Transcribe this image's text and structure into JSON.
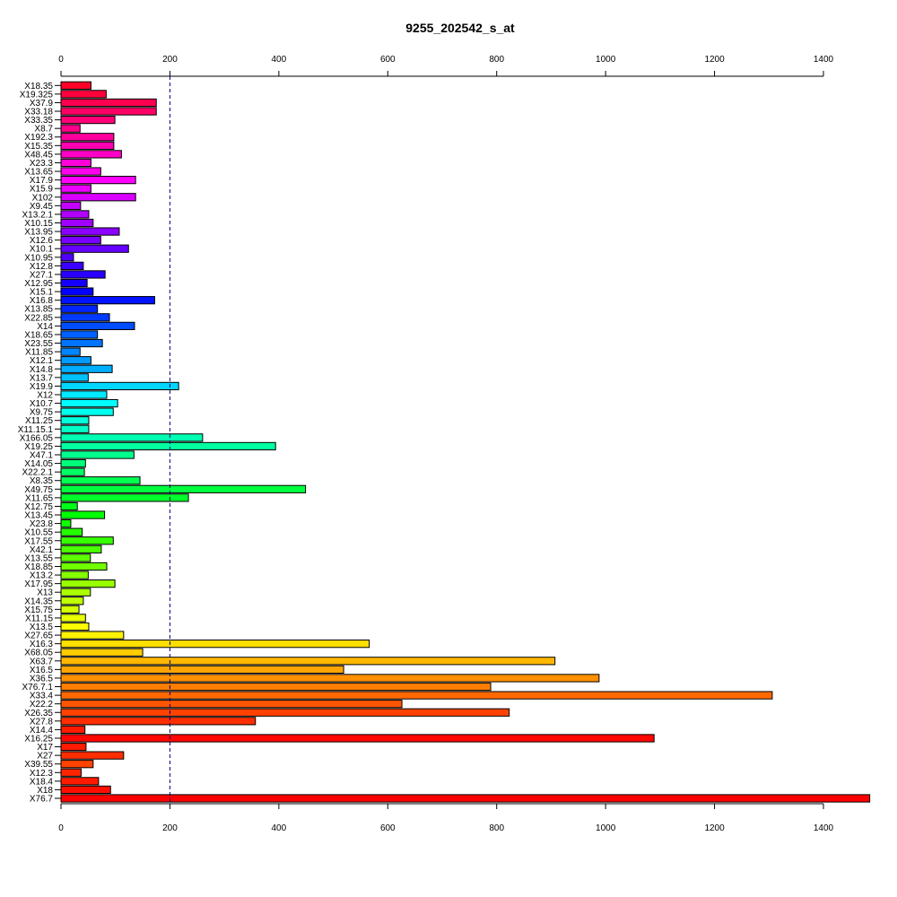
{
  "chart_data": {
    "type": "bar",
    "orientation": "horizontal",
    "title": "9255_202542_s_at",
    "xlabel": "",
    "ylabel": "",
    "xlim": [
      0,
      1400
    ],
    "xticks": [
      0,
      200,
      400,
      600,
      800,
      1000,
      1200,
      1400
    ],
    "reference_line": 200,
    "grid": false,
    "categories": [
      "X18.35",
      "X19.325",
      "X37.9",
      "X33.18",
      "X33.35",
      "X8.7",
      "X192.3",
      "X15.35",
      "X48.45",
      "X23.3",
      "X13.65",
      "X17.9",
      "X15.9",
      "X102",
      "X9.45",
      "X13.2.1",
      "X10.15",
      "X13.95",
      "X12.6",
      "X10.1",
      "X10.95",
      "X12.8",
      "X27.1",
      "X12.95",
      "X15.1",
      "X16.8",
      "X13.85",
      "X22.85",
      "X14",
      "X18.65",
      "X23.55",
      "X11.85",
      "X12.1",
      "X14.8",
      "X13.7",
      "X19.9",
      "X12",
      "X10.7",
      "X9.75",
      "X11.25",
      "X11.15.1",
      "X166.05",
      "X19.25",
      "X47.1",
      "X14.05",
      "X22.2.1",
      "X8.35",
      "X49.75",
      "X11.65",
      "X12.75",
      "X13.45",
      "X23.8",
      "X10.55",
      "X17.55",
      "X42.1",
      "X13.55",
      "X18.85",
      "X13.2",
      "X17.95",
      "X13",
      "X14.35",
      "X15.75",
      "X11.15",
      "X13.5",
      "X27.65",
      "X16.3",
      "X68.05",
      "X63.7",
      "X16.5",
      "X36.5",
      "X76.7.1",
      "X33.4",
      "X22.2",
      "X26.35",
      "X27.8",
      "X14.4",
      "X16.25",
      "X17",
      "X27",
      "X39.55",
      "X12.3",
      "X18.4",
      "X18",
      "X76.7"
    ],
    "values": [
      55,
      83,
      175,
      175,
      99,
      35,
      97,
      97,
      111,
      55,
      73,
      137,
      55,
      137,
      36,
      51,
      59,
      107,
      73,
      124,
      23,
      41,
      81,
      48,
      59,
      172,
      67,
      89,
      135,
      67,
      76,
      35,
      55,
      94,
      50,
      216,
      84,
      104,
      96,
      51,
      51,
      260,
      394,
      134,
      45,
      43,
      145,
      449,
      234,
      30,
      80,
      18,
      39,
      96,
      74,
      54,
      84,
      50,
      99,
      54,
      41,
      33,
      45,
      51,
      115,
      566,
      150,
      907,
      519,
      988,
      789,
      1306,
      626,
      823,
      357,
      44,
      1089,
      46,
      115,
      59,
      37,
      69,
      91,
      1485
    ],
    "colors": [
      "#ff0029",
      "#ff003c",
      "#ff0050",
      "#ff0064",
      "#ff0077",
      "#ff008b",
      "#ff009f",
      "#ff00b2",
      "#ff00c6",
      "#ff00d9",
      "#ff00ed",
      "#ff00ff",
      "#ed00ff",
      "#d900ff",
      "#c600ff",
      "#b200ff",
      "#9f00ff",
      "#8b00ff",
      "#7700ff",
      "#6400ff",
      "#5000ff",
      "#3c00ff",
      "#2900ff",
      "#1500ff",
      "#0200ff",
      "#0012ff",
      "#0025ff",
      "#0039ff",
      "#004cff",
      "#0060ff",
      "#0074ff",
      "#0087ff",
      "#009bff",
      "#00aeff",
      "#00c2ff",
      "#00d6ff",
      "#00e9ff",
      "#00fdff",
      "#00ffee",
      "#00ffdb",
      "#00ffc7",
      "#00ffb3",
      "#00ffa0",
      "#00ff8c",
      "#00ff78",
      "#00ff65",
      "#00ff51",
      "#00ff3e",
      "#00ff2a",
      "#00ff16",
      "#00ff03",
      "#0fff00",
      "#23ff00",
      "#36ff00",
      "#4aff00",
      "#5dff00",
      "#71ff00",
      "#85ff00",
      "#98ff00",
      "#acff00",
      "#c0ff00",
      "#d3ff00",
      "#e7ff00",
      "#faff00",
      "#fff200",
      "#ffdf00",
      "#ffcb00",
      "#ffb700",
      "#ffa400",
      "#ff9000",
      "#ff7d00",
      "#ff6900",
      "#ff5500",
      "#ff4200",
      "#ff2e00",
      "#ff1a00",
      "#ff0700",
      "#ff1a00",
      "#ff2e00",
      "#ff4200",
      "#ff2400",
      "#ff1a00",
      "#ff0d00",
      "#ff0000"
    ]
  }
}
